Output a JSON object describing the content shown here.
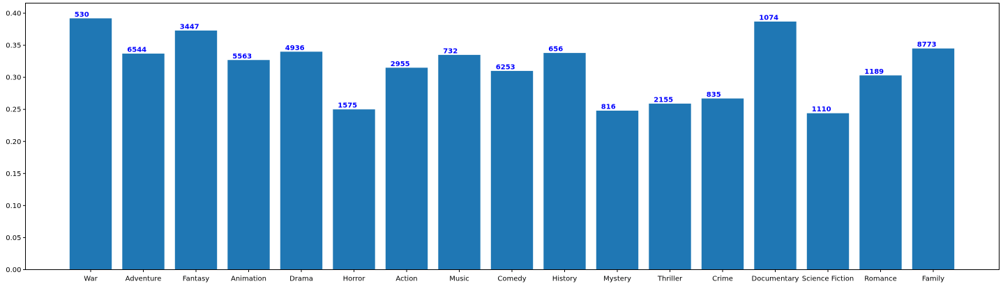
{
  "chart_data": {
    "type": "bar",
    "categories": [
      "War",
      "Adventure",
      "Fantasy",
      "Animation",
      "Drama",
      "Horror",
      "Action",
      "Music",
      "Comedy",
      "History",
      "Mystery",
      "Thriller",
      "Crime",
      "Documentary",
      "Science Fiction",
      "Romance",
      "Family"
    ],
    "values": [
      0.392,
      0.337,
      0.373,
      0.327,
      0.34,
      0.25,
      0.315,
      0.335,
      0.31,
      0.338,
      0.248,
      0.259,
      0.267,
      0.387,
      0.244,
      0.303,
      0.345
    ],
    "data_labels": [
      "530",
      "6544",
      "3447",
      "5563",
      "4936",
      "1575",
      "2955",
      "732",
      "6253",
      "656",
      "816",
      "2155",
      "835",
      "1074",
      "1110",
      "1189",
      "8773"
    ],
    "y_ticks": [
      "0.00",
      "0.05",
      "0.10",
      "0.15",
      "0.20",
      "0.25",
      "0.30",
      "0.35",
      "0.40"
    ],
    "ylim": [
      0,
      0.4
    ],
    "title": "",
    "xlabel": "",
    "ylabel": "",
    "grid": false,
    "colors": {
      "bar": "#1f77b4",
      "data_label": "#0000ff",
      "axis": "#000000"
    }
  }
}
